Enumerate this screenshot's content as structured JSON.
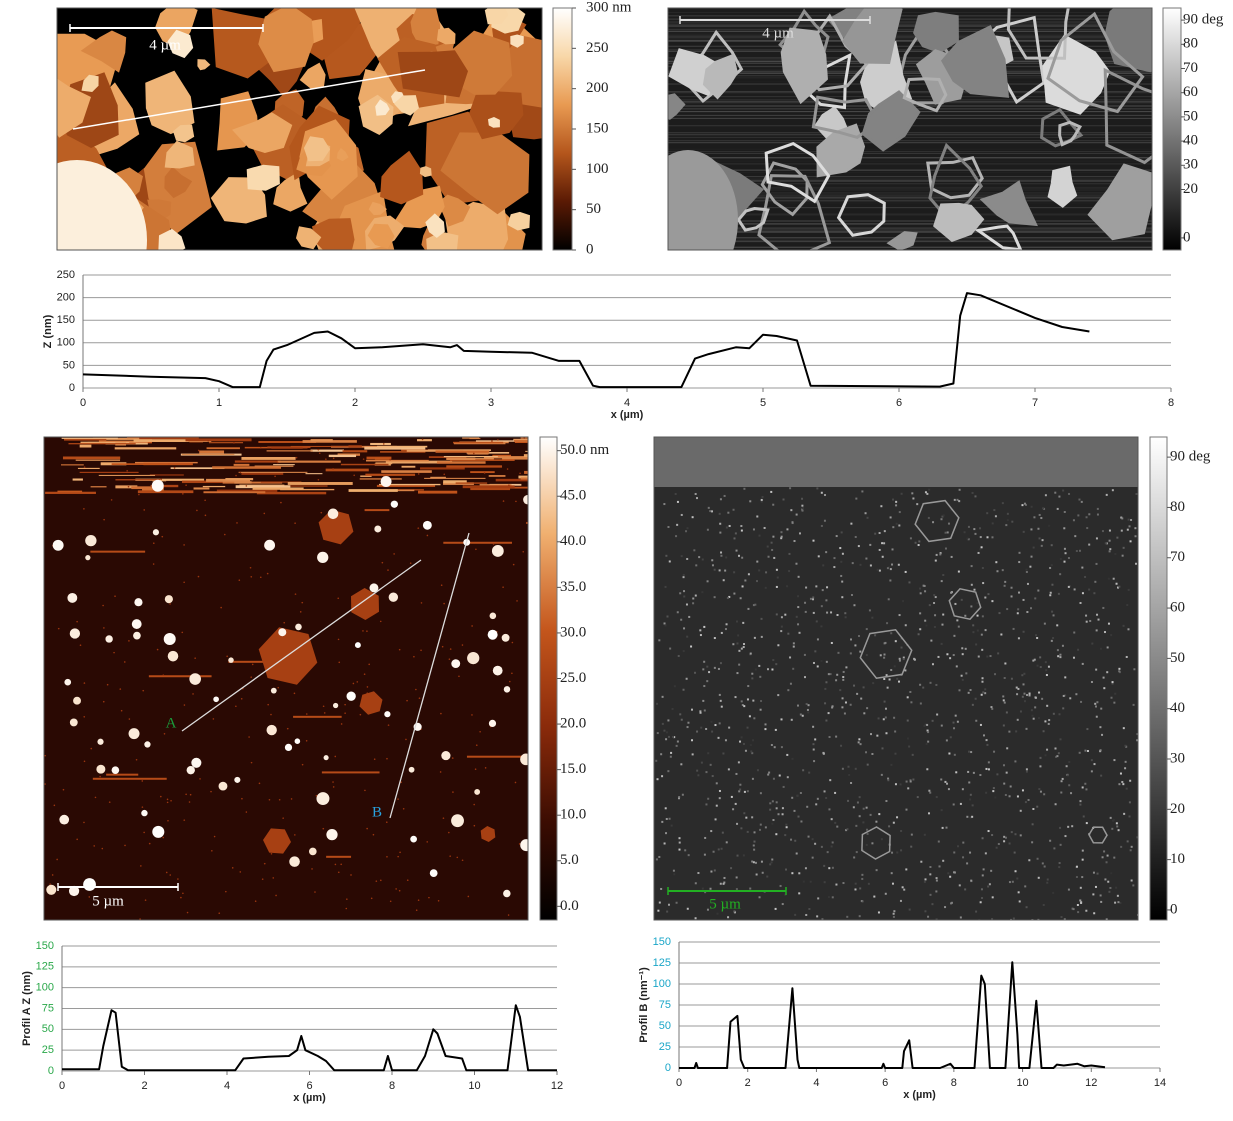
{
  "chart_data": [
    {
      "type": "image",
      "colormap": [
        "#000000",
        "#5a1a04",
        "#b4561c",
        "#e89a52",
        "#f8d7a8",
        "#ffffff"
      ],
      "ylim": [
        0,
        300
      ],
      "yticks": [
        {
          "value": 300,
          "label": "300 nm"
        },
        250,
        200,
        150,
        100,
        50,
        0
      ],
      "scale_bar": {
        "label": "4 µm",
        "color": "#ffffff"
      }
    },
    {
      "type": "image",
      "colormap": [
        "#000000",
        "#ffffff"
      ],
      "ylim": [
        -5,
        95
      ],
      "yticks": [
        {
          "value": 90,
          "label": "90 deg"
        },
        80,
        70,
        60,
        50,
        40,
        30,
        20,
        0
      ],
      "scale_bar": {
        "label": "4 µm",
        "color": "#dddddd"
      }
    },
    {
      "type": "line",
      "ylabel": "Z (nm)",
      "xlabel": "x (µm)",
      "color": "#000000",
      "ytick_color": "#222222",
      "xlim": [
        0,
        8
      ],
      "xticks": [
        0,
        1,
        2,
        3,
        4,
        5,
        6,
        7,
        8
      ],
      "ylim": [
        0,
        250
      ],
      "yticks": [
        0,
        50,
        100,
        150,
        200,
        250
      ],
      "grid": true,
      "x": [
        0,
        0.5,
        0.9,
        1.0,
        1.1,
        1.3,
        1.35,
        1.4,
        1.5,
        1.7,
        1.8,
        1.9,
        2.0,
        2.2,
        2.5,
        2.7,
        2.75,
        2.8,
        3.0,
        3.3,
        3.5,
        3.65,
        3.75,
        3.8,
        4.4,
        4.5,
        4.6,
        4.8,
        4.9,
        5.0,
        5.1,
        5.25,
        5.35,
        6.3,
        6.4,
        6.45,
        6.5,
        6.6,
        7.0,
        7.2,
        7.4
      ],
      "values": [
        30,
        25,
        22,
        15,
        2,
        2,
        60,
        85,
        95,
        122,
        125,
        110,
        88,
        90,
        97,
        90,
        95,
        82,
        80,
        78,
        60,
        60,
        5,
        2,
        2,
        65,
        75,
        90,
        88,
        118,
        115,
        105,
        5,
        3,
        10,
        160,
        210,
        205,
        155,
        135,
        125
      ]
    },
    {
      "type": "image",
      "colormap": [
        "#000000",
        "#3a0c02",
        "#8a2a0a",
        "#c4561c",
        "#f0b070",
        "#ffffff"
      ],
      "ylim": [
        -1.5,
        51.5
      ],
      "yticks": [
        {
          "value": 50,
          "label": "50.0 nm"
        },
        {
          "value": 45,
          "label": "45.0"
        },
        {
          "value": 40,
          "label": "40.0"
        },
        {
          "value": 35,
          "label": "35.0"
        },
        {
          "value": 30,
          "label": "30.0"
        },
        {
          "value": 25,
          "label": "25.0"
        },
        {
          "value": 20,
          "label": "20.0"
        },
        {
          "value": 15,
          "label": "15.0"
        },
        {
          "value": 10,
          "label": "10.0"
        },
        {
          "value": 5,
          "label": "5.0"
        },
        {
          "value": 0,
          "label": "0.0"
        }
      ],
      "scale_bar": {
        "label": "5 µm",
        "color": "#ffffff"
      },
      "markers": [
        {
          "label": "A",
          "color": "#1a9a3a"
        },
        {
          "label": "B",
          "color": "#29a3e0"
        }
      ]
    },
    {
      "type": "image",
      "colormap": [
        "#000000",
        "#ffffff"
      ],
      "ylim": [
        -2,
        94
      ],
      "yticks": [
        {
          "value": 90,
          "label": "90 deg"
        },
        80,
        70,
        60,
        50,
        40,
        30,
        20,
        10,
        0
      ],
      "scale_bar": {
        "label": "5 µm",
        "color": "#22b022"
      }
    },
    {
      "type": "line",
      "ylabel": "Profil A Z (nm)",
      "xlabel": "x (µm)",
      "color": "#000000",
      "ytick_color": "#2aa84a",
      "xlim": [
        0,
        12
      ],
      "xticks": [
        0,
        2,
        4,
        6,
        8,
        10,
        12
      ],
      "ylim": [
        0,
        150
      ],
      "yticks": [
        0,
        25,
        50,
        75,
        100,
        125,
        150
      ],
      "grid": true,
      "x": [
        0,
        0.9,
        1.0,
        1.2,
        1.3,
        1.45,
        1.6,
        2.8,
        4.2,
        4.4,
        5.0,
        5.5,
        5.7,
        5.8,
        5.9,
        6.2,
        6.4,
        6.6,
        7.8,
        7.9,
        8.0,
        8.6,
        8.8,
        9.0,
        9.1,
        9.3,
        9.7,
        9.8,
        10.8,
        11.0,
        11.1,
        11.3,
        12
      ],
      "values": [
        2,
        2,
        30,
        73,
        70,
        5,
        1,
        1,
        1,
        15,
        17,
        18,
        25,
        42,
        25,
        18,
        12,
        1,
        1,
        18,
        1,
        1,
        18,
        50,
        45,
        18,
        15,
        1,
        1,
        79,
        65,
        1,
        1
      ]
    },
    {
      "type": "line",
      "ylabel": "Profil B (nm⁻¹)",
      "xlabel": "x (µm)",
      "color": "#000000",
      "ytick_color": "#1aa6c8",
      "xlim": [
        0,
        14
      ],
      "xticks": [
        0,
        2,
        4,
        6,
        8,
        10,
        12,
        14
      ],
      "ylim": [
        0,
        150
      ],
      "yticks": [
        0,
        25,
        50,
        75,
        100,
        125,
        150
      ],
      "grid": true,
      "x": [
        0,
        0.45,
        0.5,
        0.55,
        1.4,
        1.5,
        1.7,
        1.8,
        1.9,
        3.1,
        3.3,
        3.45,
        3.5,
        5.9,
        5.95,
        6.0,
        6.5,
        6.55,
        6.7,
        6.8,
        7.6,
        7.9,
        8.0,
        8.6,
        8.8,
        8.9,
        9.05,
        9.5,
        9.7,
        9.85,
        9.9,
        10.2,
        10.4,
        10.55,
        10.9,
        11.0,
        11.2,
        11.4,
        11.6,
        11.8,
        12.0,
        12.4
      ],
      "values": [
        0,
        0,
        6,
        0,
        0,
        55,
        62,
        10,
        0,
        0,
        95,
        10,
        0,
        0,
        5,
        0,
        0,
        20,
        33,
        0,
        0,
        5,
        0,
        0,
        110,
        100,
        0,
        0,
        126,
        40,
        0,
        0,
        80,
        0,
        0,
        4,
        3,
        4,
        5,
        2,
        3,
        1
      ]
    }
  ]
}
